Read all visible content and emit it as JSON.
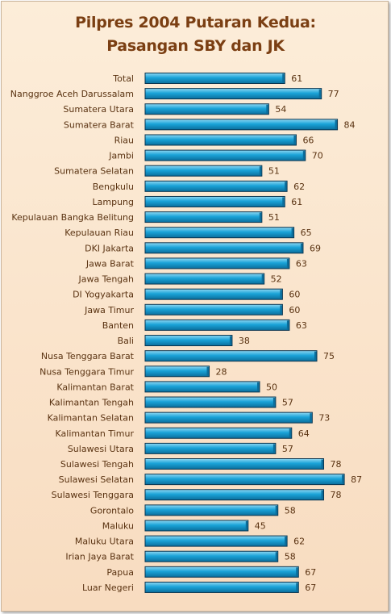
{
  "chart_data": {
    "type": "bar",
    "orientation": "horizontal",
    "title": "Pilpres 2004 Putaran Kedua:",
    "subtitle": "Pasangan SBY dan JK",
    "categories": [
      "Total",
      "Nanggroe Aceh Darussalam",
      "Sumatera Utara",
      "Sumatera Barat",
      "Riau",
      "Jambi",
      "Sumatera Selatan",
      "Bengkulu",
      "Lampung",
      "Kepulauan Bangka  Belitung",
      "Kepulauan Riau",
      "DKI Jakarta",
      "Jawa Barat",
      "Jawa Tengah",
      "DI Yogyakarta",
      "Jawa Timur",
      "Banten",
      "Bali",
      "Nusa Tenggara Barat",
      "Nusa Tenggara Timur",
      "Kalimantan Barat",
      "Kalimantan Tengah",
      "Kalimantan Selatan",
      "Kalimantan Timur",
      "Sulawesi Utara",
      "Sulawesi Tengah",
      "Sulawesi Selatan",
      "Sulawesi Tenggara",
      "Gorontalo",
      "Maluku",
      "Maluku Utara",
      "Irian Jaya  Barat",
      "Papua",
      "Luar Negeri"
    ],
    "values": [
      61,
      77,
      54,
      84,
      66,
      70,
      51,
      62,
      61,
      51,
      65,
      69,
      63,
      52,
      60,
      60,
      63,
      38,
      75,
      28,
      50,
      57,
      73,
      64,
      57,
      78,
      87,
      78,
      58,
      45,
      62,
      58,
      67,
      67
    ],
    "xlim": [
      0,
      90
    ],
    "grid": false,
    "legend": "none",
    "colors": {
      "bar": "#1aa3d8",
      "bar_light": "#8fd8f3",
      "bar_dark": "#0b6e9c",
      "bar_edge": "#0a3550",
      "text": "#5a3312",
      "title": "#7b3f13"
    }
  }
}
